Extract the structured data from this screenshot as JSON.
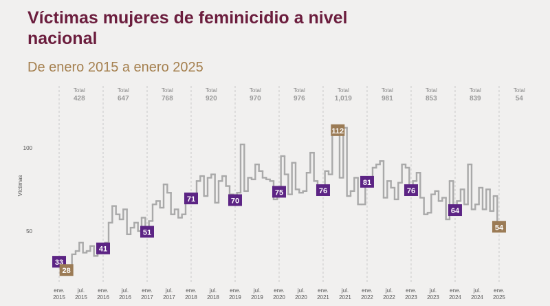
{
  "chart_data": {
    "type": "step",
    "title": "Víctimas mujeres de feminicidio a nivel nacional",
    "subtitle": "De enero 2015 a enero 2025",
    "y_label": "Víctimas",
    "color": "#a9a9a9",
    "start": "2015-01",
    "values": [
      33,
      34,
      28,
      28,
      36,
      38,
      43,
      37,
      38,
      41,
      35,
      37,
      41,
      43,
      55,
      65,
      60,
      57,
      63,
      48,
      52,
      55,
      50,
      58,
      51,
      56,
      66,
      68,
      64,
      78,
      73,
      60,
      63,
      58,
      60,
      71,
      71,
      70,
      80,
      83,
      71,
      82,
      84,
      67,
      80,
      83,
      77,
      72,
      70,
      73,
      102,
      74,
      82,
      81,
      90,
      86,
      82,
      81,
      80,
      69,
      75,
      95,
      84,
      72,
      91,
      75,
      73,
      74,
      85,
      97,
      80,
      75,
      76,
      86,
      84,
      108,
      112,
      82,
      112,
      71,
      74,
      82,
      66,
      66,
      81,
      78,
      88,
      90,
      92,
      70,
      80,
      76,
      69,
      79,
      90,
      88,
      76,
      80,
      85,
      70,
      60,
      61,
      72,
      74,
      68,
      70,
      57,
      80,
      64,
      68,
      75,
      66,
      90,
      63,
      66,
      76,
      63,
      75,
      62,
      71,
      54
    ],
    "ylim": [
      20,
      140
    ],
    "yticks": [
      50,
      100
    ],
    "xticks": [
      {
        "value": "2015-01",
        "label": "ene. 2015"
      },
      {
        "value": "2015-07",
        "label": "jul. 2015"
      },
      {
        "value": "2016-01",
        "label": "ene. 2016"
      },
      {
        "value": "2016-07",
        "label": "jul. 2016"
      },
      {
        "value": "2017-01",
        "label": "ene. 2017"
      },
      {
        "value": "2017-07",
        "label": "jul. 2017"
      },
      {
        "value": "2018-01",
        "label": "ene. 2018"
      },
      {
        "value": "2018-07",
        "label": "jul. 2018"
      },
      {
        "value": "2019-01",
        "label": "ene. 2019"
      },
      {
        "value": "2019-07",
        "label": "jul. 2019"
      },
      {
        "value": "2020-01",
        "label": "ene. 2020"
      },
      {
        "value": "2020-07",
        "label": "jul. 2020"
      },
      {
        "value": "2021-01",
        "label": "ene. 2021"
      },
      {
        "value": "2021-07",
        "label": "jul. 2021"
      },
      {
        "value": "2022-01",
        "label": "ene. 2022"
      },
      {
        "value": "2022-07",
        "label": "jul. 2022"
      },
      {
        "value": "2023-01",
        "label": "ene. 2023"
      },
      {
        "value": "2023-07",
        "label": "jul. 2023"
      },
      {
        "value": "2024-01",
        "label": "ene. 2024"
      },
      {
        "value": "2024-07",
        "label": "jul. 2024"
      },
      {
        "value": "2025-01",
        "label": "ene. 2025"
      }
    ],
    "totals_label": "Total",
    "totals": [
      428,
      647,
      768,
      920,
      970,
      976,
      {
        "value": 1019,
        "label": "1,019"
      },
      981,
      853,
      839,
      54
    ],
    "callouts": [
      {
        "x": "2015-01",
        "value": 33,
        "color": "#5c2484"
      },
      {
        "x": "2015-03",
        "value": 28,
        "color": "#9b7b55"
      },
      {
        "x": "2016-01",
        "value": 41,
        "color": "#5c2484"
      },
      {
        "x": "2017-01",
        "value": 51,
        "color": "#5c2484"
      },
      {
        "x": "2018-01",
        "value": 71,
        "color": "#5c2484"
      },
      {
        "x": "2019-01",
        "value": 70,
        "color": "#5c2484"
      },
      {
        "x": "2020-01",
        "value": 75,
        "color": "#5c2484"
      },
      {
        "x": "2021-01",
        "value": 76,
        "color": "#5c2484"
      },
      {
        "x": "2021-05",
        "value": 112,
        "color": "#9b7b55"
      },
      {
        "x": "2022-01",
        "value": 81,
        "color": "#5c2484"
      },
      {
        "x": "2023-01",
        "value": 76,
        "color": "#5c2484"
      },
      {
        "x": "2024-01",
        "value": 64,
        "color": "#5c2484"
      },
      {
        "x": "2025-01",
        "value": 54,
        "color": "#9b7b55"
      }
    ]
  }
}
